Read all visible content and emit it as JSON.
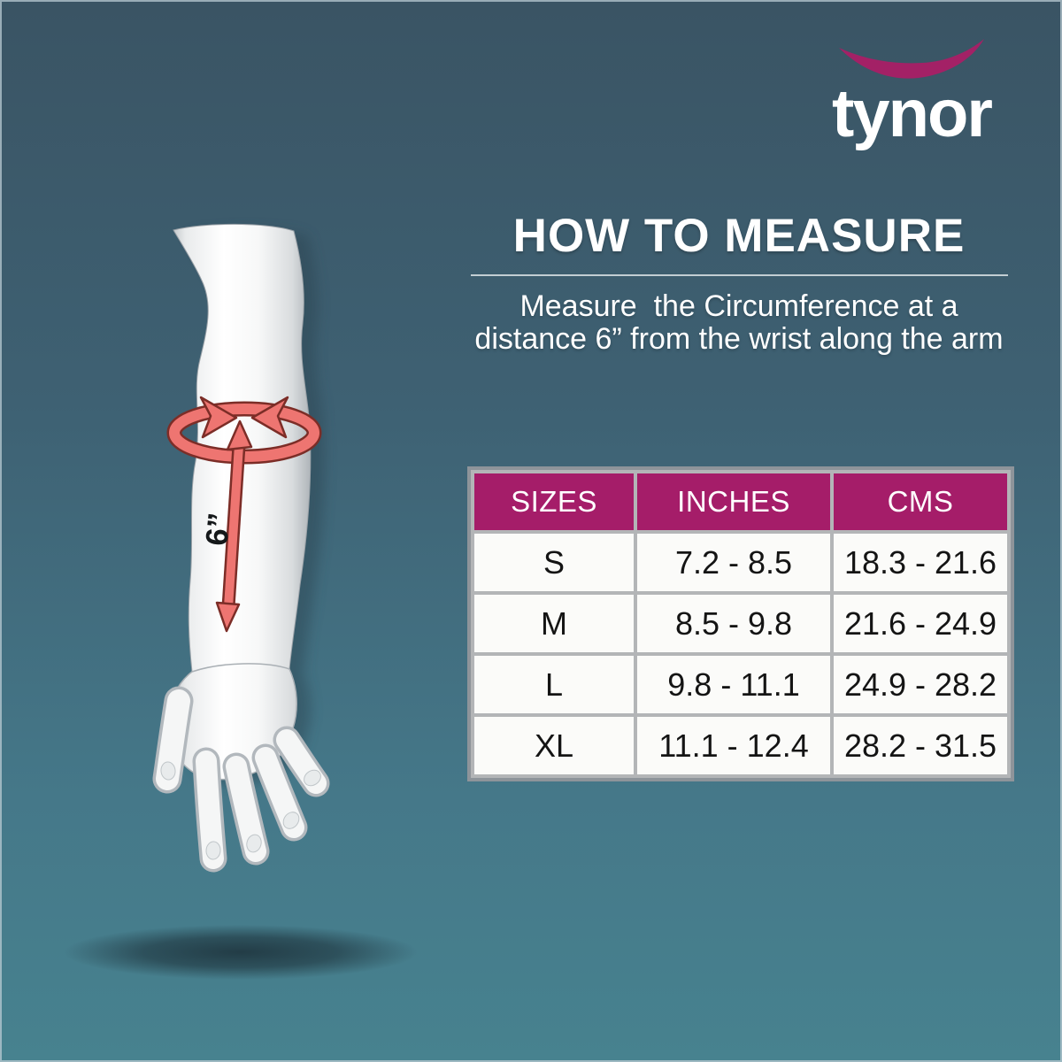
{
  "brand": {
    "name": "tynor",
    "swoosh_color": "#a32166"
  },
  "header": {
    "title": "HOW TO MEASURE",
    "subtitle": "Measure  the Circumference at a\ndistance 6” from the wrist along the arm"
  },
  "diagram": {
    "description": "arm with circumference band and length arrow",
    "measurement_label": "6”"
  },
  "size_table": {
    "columns": [
      "SIZES",
      "INCHES",
      "CMS"
    ],
    "rows": [
      {
        "size": "S",
        "inches": "7.2 - 8.5",
        "cms": "18.3 - 21.6"
      },
      {
        "size": "M",
        "inches": "8.5 - 9.8",
        "cms": "21.6 - 24.9"
      },
      {
        "size": "L",
        "inches": "9.8 - 11.1",
        "cms": "24.9 - 28.2"
      },
      {
        "size": "XL",
        "inches": "11.1 - 12.4",
        "cms": "28.2 - 31.5"
      }
    ]
  },
  "colors": {
    "accent_magenta": "#a51d69",
    "arrow_salmon": "#ee7571",
    "arrow_outline": "#7c2d27",
    "background_top": "#3a5464",
    "background_bottom": "#47828f",
    "table_frame_gray": "#8e949a",
    "cell_white": "#fbfbf9",
    "text_white": "#ffffff"
  }
}
